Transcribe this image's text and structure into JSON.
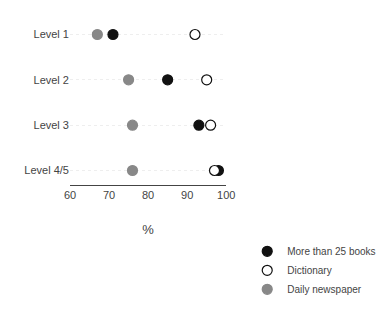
{
  "chart_data": {
    "type": "dot",
    "xlabel": "%",
    "categories": [
      "Level 1",
      "Level 2",
      "Level 3",
      "Level 4/5"
    ],
    "series": [
      {
        "name": "More than 25 books",
        "color": "#111111",
        "values": [
          71,
          85,
          93,
          98
        ]
      },
      {
        "name": "Dictionary",
        "color": "#ffffff",
        "values": [
          92,
          95,
          96,
          97
        ]
      },
      {
        "name": "Daily newspaper",
        "color": "#888888",
        "values": [
          67,
          75,
          76,
          76
        ]
      }
    ],
    "xlim": [
      60,
      100
    ],
    "xticks": [
      60,
      70,
      80,
      90,
      100
    ],
    "grid": "y",
    "legend": "lower right",
    "marker": "circle"
  }
}
